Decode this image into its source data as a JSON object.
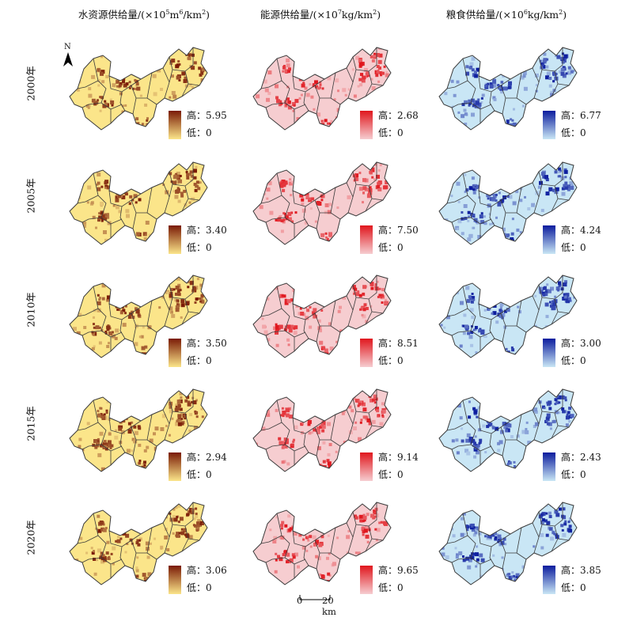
{
  "columns": [
    {
      "title_main": "水资源供给量/(×10",
      "title_exp": "5",
      "title_unit": "m",
      "title_exp2": "6",
      "title_tail": "/km",
      "title_exp3": "2",
      "title_close": ")"
    },
    {
      "title_main": "能源供给量/(×10",
      "title_exp": "7",
      "title_unit": "kg/km",
      "title_exp2": "",
      "title_tail": "",
      "title_exp3": "2",
      "title_close": ")"
    },
    {
      "title_main": "粮食供给量/(×10",
      "title_exp": "6",
      "title_unit": "kg/km",
      "title_exp2": "",
      "title_tail": "",
      "title_exp3": "2",
      "title_close": ")"
    }
  ],
  "years": [
    "2000年",
    "2005年",
    "2010年",
    "2015年",
    "2020年"
  ],
  "legend_labels": {
    "high": "高：",
    "low": "低："
  },
  "legend_values": {
    "water": [
      {
        "high": "5.95",
        "low": "0"
      },
      {
        "high": "3.40",
        "low": "0"
      },
      {
        "high": "3.50",
        "low": "0"
      },
      {
        "high": "2.94",
        "low": "0"
      },
      {
        "high": "3.06",
        "low": "0"
      }
    ],
    "energy": [
      {
        "high": "2.68",
        "low": "0"
      },
      {
        "high": "7.50",
        "low": "0"
      },
      {
        "high": "8.51",
        "low": "0"
      },
      {
        "high": "9.14",
        "low": "0"
      },
      {
        "high": "9.65",
        "low": "0"
      }
    ],
    "grain": [
      {
        "high": "6.77",
        "low": "0"
      },
      {
        "high": "4.24",
        "low": "0"
      },
      {
        "high": "3.00",
        "low": "0"
      },
      {
        "high": "2.43",
        "low": "0"
      },
      {
        "high": "3.85",
        "low": "0"
      }
    ]
  },
  "north_label": "N",
  "scale": {
    "start": "0",
    "end": "20 km"
  },
  "colors": {
    "water_low": "#fbe58a",
    "water_high": "#7a1a06",
    "energy_low": "#f6cdd0",
    "energy_high": "#e0161d",
    "grain_low": "#c9e6f5",
    "grain_high": "#0b1c9e",
    "boundary": "#3a3a3a"
  }
}
